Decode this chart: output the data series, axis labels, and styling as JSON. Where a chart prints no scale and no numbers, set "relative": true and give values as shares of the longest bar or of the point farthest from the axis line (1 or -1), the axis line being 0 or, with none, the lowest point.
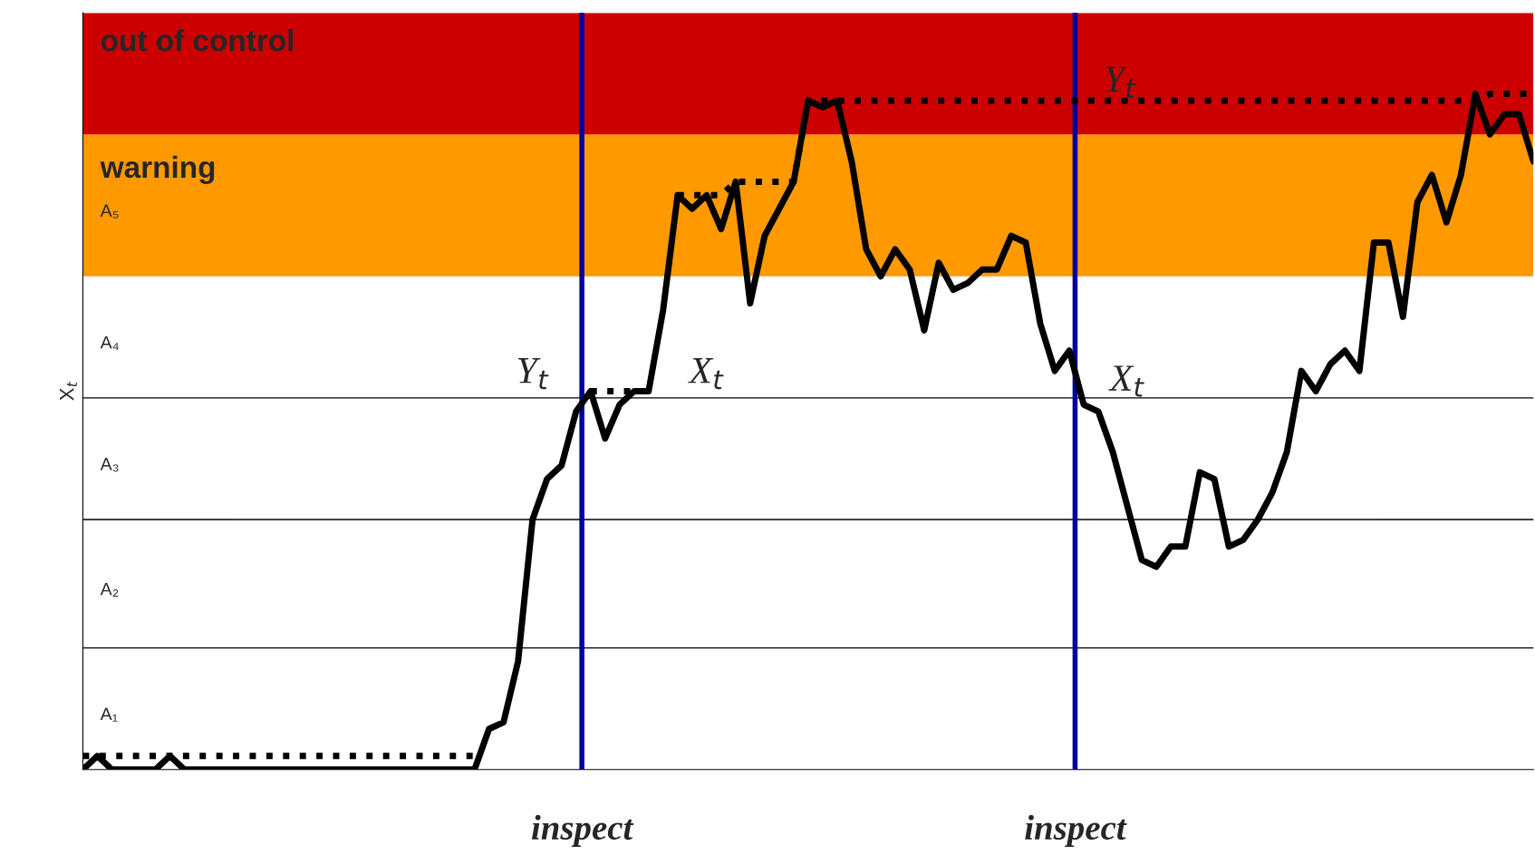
{
  "chart_data": {
    "type": "line",
    "relative": true,
    "ylabel": "X$_{t}$",
    "legend": false,
    "tick_labels": false,
    "categories": [
      null,
      null,
      null,
      null,
      null,
      null,
      null,
      null,
      null,
      null,
      null,
      null,
      null,
      null,
      null,
      null,
      null,
      null,
      null,
      null,
      null,
      null,
      null,
      null,
      null,
      null,
      null,
      null,
      null,
      null,
      null,
      null,
      null,
      null,
      null,
      null,
      null,
      null,
      null,
      null,
      null,
      null,
      null,
      null,
      null,
      null,
      null,
      null,
      null,
      null,
      null,
      null,
      null,
      null,
      null,
      null,
      null,
      null,
      null,
      null,
      null,
      null,
      null,
      null,
      null,
      null,
      null,
      null,
      null,
      null,
      null,
      null,
      null,
      null,
      null,
      null,
      null,
      null,
      null,
      null,
      null,
      null,
      null,
      null,
      null,
      null,
      null,
      null,
      null,
      null,
      null,
      null,
      null,
      null,
      null,
      null,
      null,
      null,
      null,
      null,
      null
    ],
    "series": [
      {
        "color": "#000000",
        "line_style": "solid",
        "values": [
          0,
          0.02,
          0,
          0,
          0,
          0,
          0.02,
          0,
          0,
          0,
          0,
          0,
          0,
          0,
          0,
          0,
          0,
          0,
          0,
          0,
          0,
          0,
          0,
          0,
          0,
          0,
          0,
          0,
          0.06,
          0.07,
          0.16,
          0.37,
          0.43,
          0.45,
          0.53,
          0.56,
          0.49,
          0.54,
          0.56,
          0.56,
          0.68,
          0.85,
          0.83,
          0.85,
          0.8,
          0.87,
          0.69,
          0.79,
          0.83,
          0.87,
          0.99,
          0.98,
          0.99,
          0.9,
          0.77,
          0.73,
          0.77,
          0.74,
          0.65,
          0.75,
          0.71,
          0.72,
          0.74,
          0.74,
          0.79,
          0.78,
          0.66,
          0.59,
          0.62,
          0.54,
          0.53,
          0.47,
          0.39,
          0.31,
          0.3,
          0.33,
          0.33,
          0.44,
          0.43,
          0.33,
          0.34,
          0.37,
          0.41,
          0.47,
          0.59,
          0.56,
          0.6,
          0.62,
          0.59,
          0.78,
          0.78,
          0.67,
          0.84,
          0.88,
          0.81,
          0.88,
          1.0,
          0.94,
          0.97,
          0.97,
          0.9
        ]
      },
      {
        "color": "#000000",
        "line_style": "dotted",
        "values": [
          0.02,
          0.02,
          0.02,
          0.02,
          0.02,
          0.02,
          0.02,
          0.02,
          0.02,
          0.02,
          0.02,
          0.02,
          0.02,
          0.02,
          0.02,
          0.02,
          0.02,
          0.02,
          0.02,
          0.02,
          0.02,
          0.02,
          0.02,
          0.02,
          0.02,
          0.02,
          0.02,
          0.02,
          null,
          null,
          null,
          null,
          null,
          null,
          null,
          0.56,
          0.56,
          0.56,
          0.56,
          0.56,
          null,
          0.85,
          0.85,
          0.85,
          0.85,
          0.87,
          0.87,
          0.87,
          0.87,
          0.87,
          0.99,
          0.99,
          0.99,
          0.99,
          0.99,
          0.99,
          0.99,
          0.99,
          0.99,
          0.99,
          0.99,
          0.99,
          0.99,
          0.99,
          0.99,
          0.99,
          0.99,
          0.99,
          0.99,
          0.99,
          0.99,
          0.99,
          0.99,
          0.99,
          0.99,
          0.99,
          0.99,
          0.99,
          0.99,
          0.99,
          0.99,
          0.99,
          0.99,
          0.99,
          0.99,
          0.99,
          0.99,
          0.99,
          0.99,
          0.99,
          0.99,
          0.99,
          0.99,
          0.99,
          0.99,
          0.99,
          0.99,
          1.0,
          1.0,
          1.0,
          1.0
        ]
      }
    ],
    "bands": [
      {
        "axis": "y",
        "from": 0.73,
        "to": 0.94,
        "label": "warning",
        "color": "#ff9900"
      },
      {
        "axis": "y",
        "from": 0.94,
        "to": 1.12,
        "label": "out of control",
        "color": "#cc0000"
      }
    ],
    "ref_lines": [
      {
        "axis": "y",
        "value": 0.18,
        "color": "#000000"
      },
      {
        "axis": "y",
        "value": 0.37,
        "color": "#000000"
      },
      {
        "axis": "y",
        "value": 0.55,
        "color": "#000000"
      }
    ],
    "annotations": [
      "A₁",
      "A₂",
      "A₃",
      "A₄",
      "A₅",
      "Y$_{t}$",
      "X$_{t}$",
      "Y$_{t}$",
      "X$_{t}$",
      "inspect",
      "inspect"
    ]
  }
}
